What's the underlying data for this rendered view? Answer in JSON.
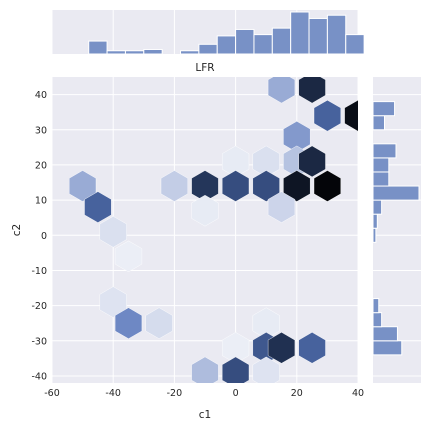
{
  "chart_data": {
    "type": "hexbin-joint",
    "title": "LFR",
    "xlabel": "c1",
    "ylabel": "c2",
    "xlim": [
      -60,
      40
    ],
    "ylim": [
      -42,
      45
    ],
    "xticks": [
      -60,
      -40,
      -20,
      0,
      20,
      40
    ],
    "yticks": [
      -40,
      -30,
      -20,
      -10,
      0,
      10,
      20,
      30,
      40
    ],
    "grid": true,
    "colors": {
      "background": "#EAEAF2",
      "grid": "#FFFFFF",
      "bar": "#7891C6",
      "hex_low": "#F0F2F8",
      "hex_high": "#000000"
    },
    "hexbins": [
      {
        "x": 25,
        "y": 42,
        "level": 0.85
      },
      {
        "x": 15,
        "y": 42,
        "level": 0.35
      },
      {
        "x": 30,
        "y": 34,
        "level": 0.6
      },
      {
        "x": 40,
        "y": 34,
        "level": 0.95
      },
      {
        "x": 20,
        "y": 28,
        "level": 0.4
      },
      {
        "x": 0,
        "y": 21,
        "level": 0.05
      },
      {
        "x": 10,
        "y": 21,
        "level": 0.12
      },
      {
        "x": 20,
        "y": 21,
        "level": 0.28
      },
      {
        "x": 25,
        "y": 21,
        "level": 0.85
      },
      {
        "x": -20,
        "y": 14,
        "level": 0.25
      },
      {
        "x": -10,
        "y": 14,
        "level": 0.8
      },
      {
        "x": 0,
        "y": 14,
        "level": 0.7
      },
      {
        "x": 10,
        "y": 14,
        "level": 0.7
      },
      {
        "x": 20,
        "y": 14,
        "level": 0.92
      },
      {
        "x": 30,
        "y": 14,
        "level": 0.98
      },
      {
        "x": -50,
        "y": 14,
        "level": 0.35
      },
      {
        "x": -45,
        "y": 8,
        "level": 0.6
      },
      {
        "x": -10,
        "y": 7,
        "level": 0.05
      },
      {
        "x": 15,
        "y": 8,
        "level": 0.2
      },
      {
        "x": -40,
        "y": 1,
        "level": 0.12
      },
      {
        "x": -35,
        "y": -6,
        "level": 0.03
      },
      {
        "x": -40,
        "y": -19,
        "level": 0.1
      },
      {
        "x": -35,
        "y": -25,
        "level": 0.45
      },
      {
        "x": -25,
        "y": -25,
        "level": 0.15
      },
      {
        "x": 10,
        "y": -25,
        "level": 0.05
      },
      {
        "x": 0,
        "y": -32,
        "level": 0.03
      },
      {
        "x": 10,
        "y": -32,
        "level": 0.65
      },
      {
        "x": 15,
        "y": -32,
        "level": 0.82
      },
      {
        "x": 25,
        "y": -32,
        "level": 0.6
      },
      {
        "x": -10,
        "y": -39,
        "level": 0.3
      },
      {
        "x": 0,
        "y": -39,
        "level": 0.7
      },
      {
        "x": 10,
        "y": -39,
        "level": 0.1
      }
    ],
    "top_histogram": {
      "bin_starts": [
        -60,
        -54,
        -48,
        -42,
        -36,
        -30,
        -24,
        -18,
        -12,
        -6,
        0,
        6,
        12,
        18,
        24,
        30,
        36
      ],
      "bin_width": 6,
      "counts": [
        0,
        0,
        2,
        0.5,
        0.5,
        0.7,
        0,
        0.5,
        1.5,
        2.8,
        3.8,
        3.0,
        4.0,
        6.5,
        5.5,
        6.0,
        3.0
      ]
    },
    "right_histogram": {
      "bin_starts": [
        -42,
        -38,
        -34,
        -30,
        -26,
        -22,
        -18,
        -14,
        -10,
        -6,
        -2,
        2,
        6,
        10,
        14,
        18,
        22,
        26,
        30,
        34,
        38
      ],
      "bin_width": 4,
      "counts": [
        0,
        0,
        2,
        1.7,
        0.6,
        0.4,
        0,
        0,
        0,
        0,
        0.2,
        0.3,
        0.6,
        3.2,
        1.1,
        1.1,
        1.6,
        0,
        0.8,
        1.5,
        0
      ]
    }
  }
}
